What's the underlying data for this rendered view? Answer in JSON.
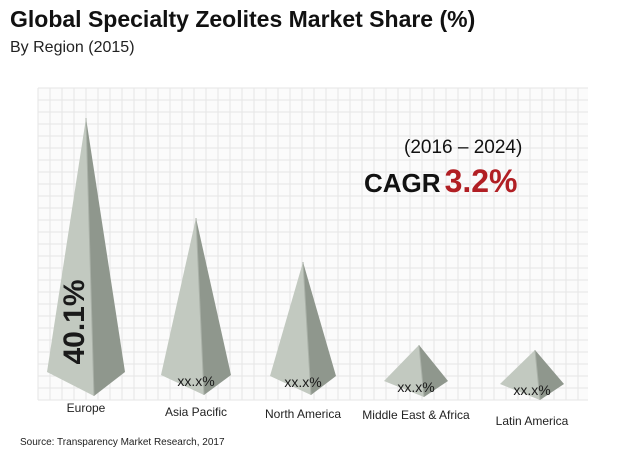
{
  "title": "Global Specialty Zeolites Market Share (%)",
  "subtitle": "By Region (2015)",
  "annotation": {
    "period": "(2016 – 2024)",
    "cagr_label": "CAGR",
    "cagr_value": "3.2%",
    "cagr_color": "#b11f24"
  },
  "source": "Source: Transparency Market Research, 2017",
  "chart_data": {
    "type": "bar",
    "style": "pyramid",
    "categories": [
      "Europe",
      "Asia Pacific",
      "North America",
      "Middle East & Africa",
      "Latin America"
    ],
    "values": [
      40.1,
      null,
      null,
      null,
      null
    ],
    "data_labels": [
      "40.1%",
      "xx.x%",
      "xx.x%",
      "xx.x%",
      "xx.x%"
    ],
    "grid": true,
    "colors": {
      "light": "#c2c9c0",
      "dark": "#8f978d",
      "edge": "#a9b0a7"
    }
  }
}
